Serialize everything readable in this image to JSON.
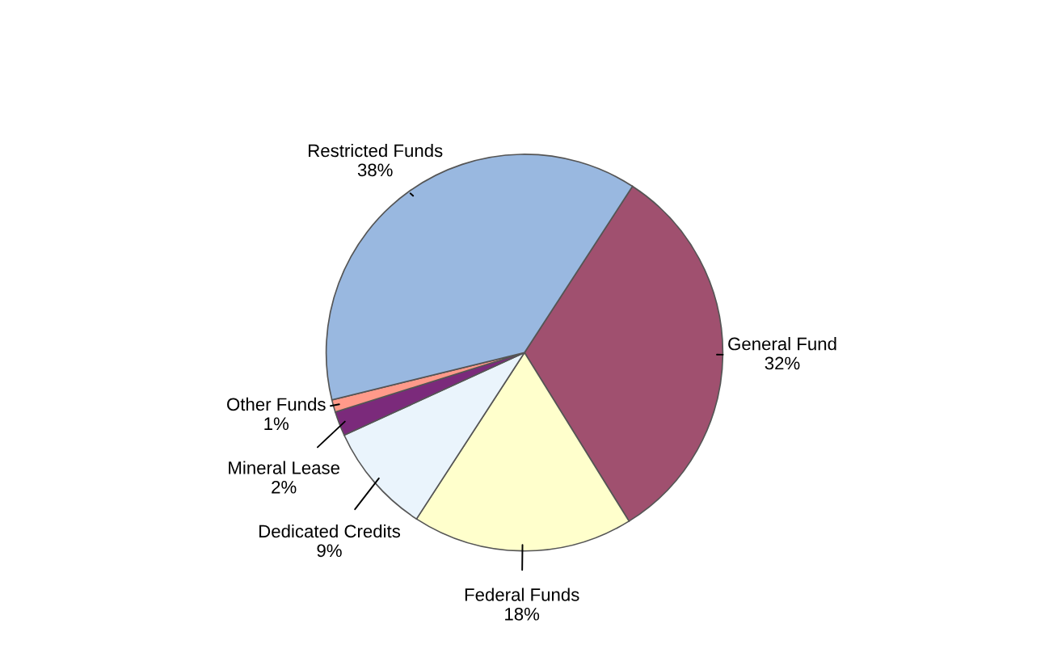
{
  "chart_data": {
    "type": "pie",
    "categories": [
      "General Fund",
      "Federal Funds",
      "Dedicated Credits",
      "Mineral Lease",
      "Other Funds",
      "Restricted Funds"
    ],
    "values": [
      32,
      18,
      9,
      2,
      1,
      38
    ],
    "value_labels": [
      "32%",
      "18%",
      "9%",
      "2%",
      "1%",
      "38%"
    ],
    "colors": [
      "#a0506f",
      "#ffffcc",
      "#eaf4fc",
      "#7b2a7b",
      "#ff9a8a",
      "#99b8e0"
    ]
  }
}
